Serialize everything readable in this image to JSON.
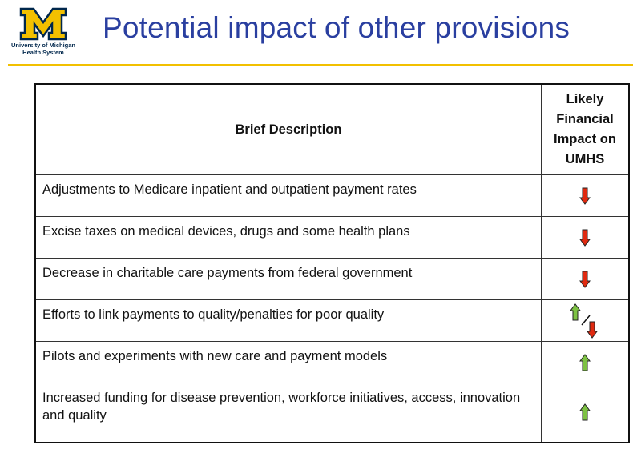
{
  "logo": {
    "line1": "University of Michigan",
    "line2": "Health System",
    "icon": "block-m-logo-icon",
    "colors": {
      "maize": "#f2c000",
      "blue": "#00274c"
    }
  },
  "title": "Potential impact of other provisions",
  "table": {
    "headers": {
      "description": "Brief Description",
      "impact": "Likely Financial Impact on UMHS"
    },
    "rows": [
      {
        "description": "Adjustments to Medicare inpatient and outpatient payment rates",
        "impact": "down",
        "impact_icon": "red-down-arrow-icon"
      },
      {
        "description": "Excise taxes on medical devices, drugs and some health plans",
        "impact": "down",
        "impact_icon": "red-down-arrow-icon"
      },
      {
        "description": "Decrease in charitable care payments from federal government",
        "impact": "down",
        "impact_icon": "red-down-arrow-icon"
      },
      {
        "description": "Efforts to link payments to quality/penalties for poor quality",
        "impact": "mixed",
        "impact_icon": "green-up-red-down-arrow-icon"
      },
      {
        "description": "Pilots and experiments with new care and payment models",
        "impact": "up",
        "impact_icon": "green-up-arrow-icon"
      },
      {
        "description": "Increased funding for disease prevention, workforce initiatives, access, innovation and quality",
        "impact": "up",
        "impact_icon": "green-up-arrow-icon"
      }
    ]
  },
  "colors": {
    "title": "#2a3fa0",
    "rule": "#f2c000",
    "up_arrow": "#7dc242",
    "down_arrow": "#e02a10"
  }
}
